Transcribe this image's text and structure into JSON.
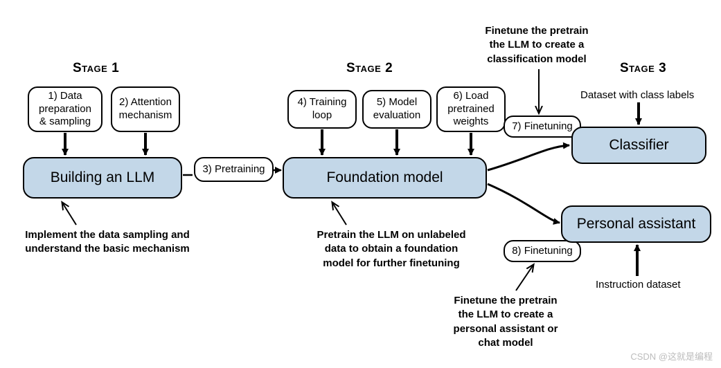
{
  "type": "flowchart",
  "background_color": "#ffffff",
  "node_fill": "#c3d7e8",
  "node_border": "#000000",
  "arrow_color": "#000000",
  "text_color": "#000000",
  "stage_title_fontsize": 19,
  "main_node_fontsize": 21,
  "small_node_fontsize": 15,
  "annotation_fontsize": 15,
  "stages": {
    "s1": "Stage 1",
    "s2": "Stage 2",
    "s3": "Stage 3"
  },
  "nodes": {
    "data_prep": {
      "label": "1) Data\npreparation\n& sampling"
    },
    "attention": {
      "label": "2) Attention\nmechanism"
    },
    "pretraining": {
      "label": "3) Pretraining"
    },
    "train_loop": {
      "label": "4) Training\nloop"
    },
    "model_eval": {
      "label": "5) Model\nevaluation"
    },
    "load_wts": {
      "label": "6) Load\npretrained\nweights"
    },
    "finetune7": {
      "label": "7) Finetuning"
    },
    "finetune8": {
      "label": "8) Finetuning"
    }
  },
  "main_nodes": {
    "build": {
      "label": "Building an LLM"
    },
    "foundation": {
      "label": "Foundation model"
    },
    "classifier": {
      "label": "Classifier"
    },
    "assistant": {
      "label": "Personal assistant"
    }
  },
  "annotations": {
    "a1": "Implement the data sampling and\nunderstand the basic mechanism",
    "a2": "Pretrain the LLM on unlabeled\ndata to obtain a foundation\nmodel for further finetuning",
    "a3": "Finetune the pretrain\nthe LLM to create a\nclassification model",
    "a4": "Finetune the pretrain\nthe LLM to create a\npersonal assistant or\nchat model"
  },
  "labels": {
    "ds_class": "Dataset with class labels",
    "ds_instr": "Instruction dataset"
  },
  "watermark": "CSDN @这就是编程"
}
